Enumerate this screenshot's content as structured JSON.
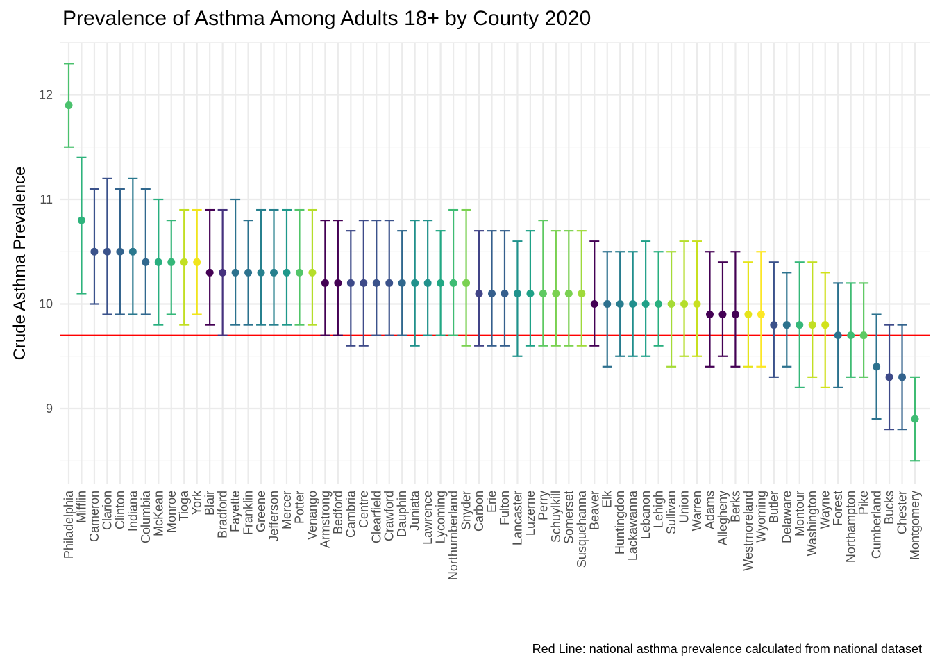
{
  "chart_data": {
    "type": "scatter",
    "title": "Prevalence of Asthma Among Adults 18+ by County 2020",
    "ylabel": "Crude Asthma Prevalence",
    "xlabel": "",
    "caption": "Red Line: national asthma prevalence calculated from national dataset",
    "ylim": [
      8.4,
      12.5
    ],
    "yticks": [
      9,
      10,
      11,
      12
    ],
    "reference_line": {
      "value": 9.7,
      "color": "#ff0000"
    },
    "grid": true,
    "points": [
      {
        "county": "Philadelphia",
        "value": 11.9,
        "low": 11.5,
        "high": 12.3,
        "color": "#4ac16d"
      },
      {
        "county": "Mifflin",
        "value": 10.8,
        "low": 10.1,
        "high": 11.4,
        "color": "#2eb37c"
      },
      {
        "county": "Cameron",
        "value": 10.5,
        "low": 10.0,
        "high": 11.1,
        "color": "#3b528b"
      },
      {
        "county": "Clarion",
        "value": 10.5,
        "low": 9.9,
        "high": 11.2,
        "color": "#3b528b"
      },
      {
        "county": "Clinton",
        "value": 10.5,
        "low": 9.9,
        "high": 11.1,
        "color": "#33638d"
      },
      {
        "county": "Indiana",
        "value": 10.5,
        "low": 9.9,
        "high": 11.2,
        "color": "#2a788e"
      },
      {
        "county": "Columbia",
        "value": 10.4,
        "low": 9.9,
        "high": 11.1,
        "color": "#31688e"
      },
      {
        "county": "McKean",
        "value": 10.4,
        "low": 9.8,
        "high": 11.0,
        "color": "#29af7f"
      },
      {
        "county": "Monroe",
        "value": 10.4,
        "low": 9.9,
        "high": 10.8,
        "color": "#35b779"
      },
      {
        "county": "Tioga",
        "value": 10.4,
        "low": 9.8,
        "high": 10.9,
        "color": "#c2df23"
      },
      {
        "county": "York",
        "value": 10.4,
        "low": 9.9,
        "high": 10.9,
        "color": "#f1e51d"
      },
      {
        "county": "Blair",
        "value": 10.3,
        "low": 9.8,
        "high": 10.9,
        "color": "#440154"
      },
      {
        "county": "Bradford",
        "value": 10.3,
        "low": 9.7,
        "high": 10.9,
        "color": "#46327e"
      },
      {
        "county": "Fayette",
        "value": 10.3,
        "low": 9.8,
        "high": 11.0,
        "color": "#2c728e"
      },
      {
        "county": "Franklin",
        "value": 10.3,
        "low": 9.8,
        "high": 10.8,
        "color": "#2c728e"
      },
      {
        "county": "Greene",
        "value": 10.3,
        "low": 9.8,
        "high": 10.9,
        "color": "#27808e"
      },
      {
        "county": "Jefferson",
        "value": 10.3,
        "low": 9.8,
        "high": 10.9,
        "color": "#27808e"
      },
      {
        "county": "Mercer",
        "value": 10.3,
        "low": 9.8,
        "high": 10.9,
        "color": "#1f988b"
      },
      {
        "county": "Potter",
        "value": 10.3,
        "low": 9.8,
        "high": 10.9,
        "color": "#52c569"
      },
      {
        "county": "Venango",
        "value": 10.3,
        "low": 9.8,
        "high": 10.9,
        "color": "#b5de2b"
      },
      {
        "county": "Armstrong",
        "value": 10.2,
        "low": 9.7,
        "high": 10.8,
        "color": "#440154"
      },
      {
        "county": "Bedford",
        "value": 10.2,
        "low": 9.7,
        "high": 10.8,
        "color": "#440154"
      },
      {
        "county": "Cambria",
        "value": 10.2,
        "low": 9.6,
        "high": 10.7,
        "color": "#3e4a89"
      },
      {
        "county": "Centre",
        "value": 10.2,
        "low": 9.6,
        "high": 10.8,
        "color": "#3e4a89"
      },
      {
        "county": "Clearfield",
        "value": 10.2,
        "low": 9.7,
        "high": 10.8,
        "color": "#3b528b"
      },
      {
        "county": "Crawford",
        "value": 10.2,
        "low": 9.7,
        "high": 10.8,
        "color": "#3b528b"
      },
      {
        "county": "Dauphin",
        "value": 10.2,
        "low": 9.7,
        "high": 10.7,
        "color": "#31688e"
      },
      {
        "county": "Juniata",
        "value": 10.2,
        "low": 9.6,
        "high": 10.8,
        "color": "#21918c"
      },
      {
        "county": "Lawrence",
        "value": 10.2,
        "low": 9.7,
        "high": 10.8,
        "color": "#21918c"
      },
      {
        "county": "Lycoming",
        "value": 10.2,
        "low": 9.7,
        "high": 10.7,
        "color": "#22a884"
      },
      {
        "county": "Northumberland",
        "value": 10.2,
        "low": 9.7,
        "high": 10.9,
        "color": "#3fbc73"
      },
      {
        "county": "Snyder",
        "value": 10.2,
        "low": 9.6,
        "high": 10.9,
        "color": "#7ad151"
      },
      {
        "county": "Carbon",
        "value": 10.1,
        "low": 9.6,
        "high": 10.7,
        "color": "#414487"
      },
      {
        "county": "Erie",
        "value": 10.1,
        "low": 9.6,
        "high": 10.7,
        "color": "#355f8d"
      },
      {
        "county": "Fulton",
        "value": 10.1,
        "low": 9.6,
        "high": 10.7,
        "color": "#355f8d"
      },
      {
        "county": "Lancaster",
        "value": 10.1,
        "low": 9.5,
        "high": 10.6,
        "color": "#20928c"
      },
      {
        "county": "Luzerne",
        "value": 10.1,
        "low": 9.6,
        "high": 10.7,
        "color": "#1fa187"
      },
      {
        "county": "Perry",
        "value": 10.1,
        "low": 9.6,
        "high": 10.8,
        "color": "#5ec962"
      },
      {
        "county": "Schuylkill",
        "value": 10.1,
        "low": 9.6,
        "high": 10.7,
        "color": "#7ad151"
      },
      {
        "county": "Somerset",
        "value": 10.1,
        "low": 9.6,
        "high": 10.7,
        "color": "#7ad151"
      },
      {
        "county": "Susquehanna",
        "value": 10.1,
        "low": 9.6,
        "high": 10.7,
        "color": "#9fda3a"
      },
      {
        "county": "Beaver",
        "value": 10.0,
        "low": 9.6,
        "high": 10.6,
        "color": "#440154"
      },
      {
        "county": "Elk",
        "value": 10.0,
        "low": 9.4,
        "high": 10.5,
        "color": "#2d708e"
      },
      {
        "county": "Huntingdon",
        "value": 10.0,
        "low": 9.5,
        "high": 10.5,
        "color": "#287c8e"
      },
      {
        "county": "Lackawanna",
        "value": 10.0,
        "low": 9.5,
        "high": 10.5,
        "color": "#218f8d"
      },
      {
        "county": "Lebanon",
        "value": 10.0,
        "low": 9.5,
        "high": 10.6,
        "color": "#1fa088"
      },
      {
        "county": "Lehigh",
        "value": 10.0,
        "low": 9.6,
        "high": 10.5,
        "color": "#29af7f"
      },
      {
        "county": "Sullivan",
        "value": 10.0,
        "low": 9.4,
        "high": 10.5,
        "color": "#a5db36"
      },
      {
        "county": "Union",
        "value": 10.0,
        "low": 9.5,
        "high": 10.6,
        "color": "#b5de2b"
      },
      {
        "county": "Warren",
        "value": 10.0,
        "low": 9.5,
        "high": 10.6,
        "color": "#c8e020"
      },
      {
        "county": "Adams",
        "value": 9.9,
        "low": 9.4,
        "high": 10.5,
        "color": "#440154"
      },
      {
        "county": "Allegheny",
        "value": 9.9,
        "low": 9.5,
        "high": 10.4,
        "color": "#440154"
      },
      {
        "county": "Berks",
        "value": 9.9,
        "low": 9.4,
        "high": 10.5,
        "color": "#440154"
      },
      {
        "county": "Westmoreland",
        "value": 9.9,
        "low": 9.4,
        "high": 10.4,
        "color": "#e5e419"
      },
      {
        "county": "Wyoming",
        "value": 9.9,
        "low": 9.4,
        "high": 10.5,
        "color": "#fde725"
      },
      {
        "county": "Butler",
        "value": 9.8,
        "low": 9.3,
        "high": 10.4,
        "color": "#3b528b"
      },
      {
        "county": "Delaware",
        "value": 9.8,
        "low": 9.4,
        "high": 10.3,
        "color": "#2c728e"
      },
      {
        "county": "Montour",
        "value": 9.8,
        "low": 9.2,
        "high": 10.4,
        "color": "#35b779"
      },
      {
        "county": "Washington",
        "value": 9.8,
        "low": 9.3,
        "high": 10.4,
        "color": "#c2df23"
      },
      {
        "county": "Wayne",
        "value": 9.8,
        "low": 9.2,
        "high": 10.3,
        "color": "#d2e21b"
      },
      {
        "county": "Forest",
        "value": 9.7,
        "low": 9.2,
        "high": 10.2,
        "color": "#2c728e"
      },
      {
        "county": "Northampton",
        "value": 9.7,
        "low": 9.3,
        "high": 10.2,
        "color": "#3fbc73"
      },
      {
        "county": "Pike",
        "value": 9.7,
        "low": 9.3,
        "high": 10.2,
        "color": "#5ec962"
      },
      {
        "county": "Cumberland",
        "value": 9.4,
        "low": 8.9,
        "high": 9.9,
        "color": "#2c728e"
      },
      {
        "county": "Bucks",
        "value": 9.3,
        "low": 8.8,
        "high": 9.8,
        "color": "#3e4a89"
      },
      {
        "county": "Chester",
        "value": 9.3,
        "low": 8.8,
        "high": 9.8,
        "color": "#33638d"
      },
      {
        "county": "Montgomery",
        "value": 8.9,
        "low": 8.5,
        "high": 9.3,
        "color": "#3fbc73"
      }
    ]
  }
}
